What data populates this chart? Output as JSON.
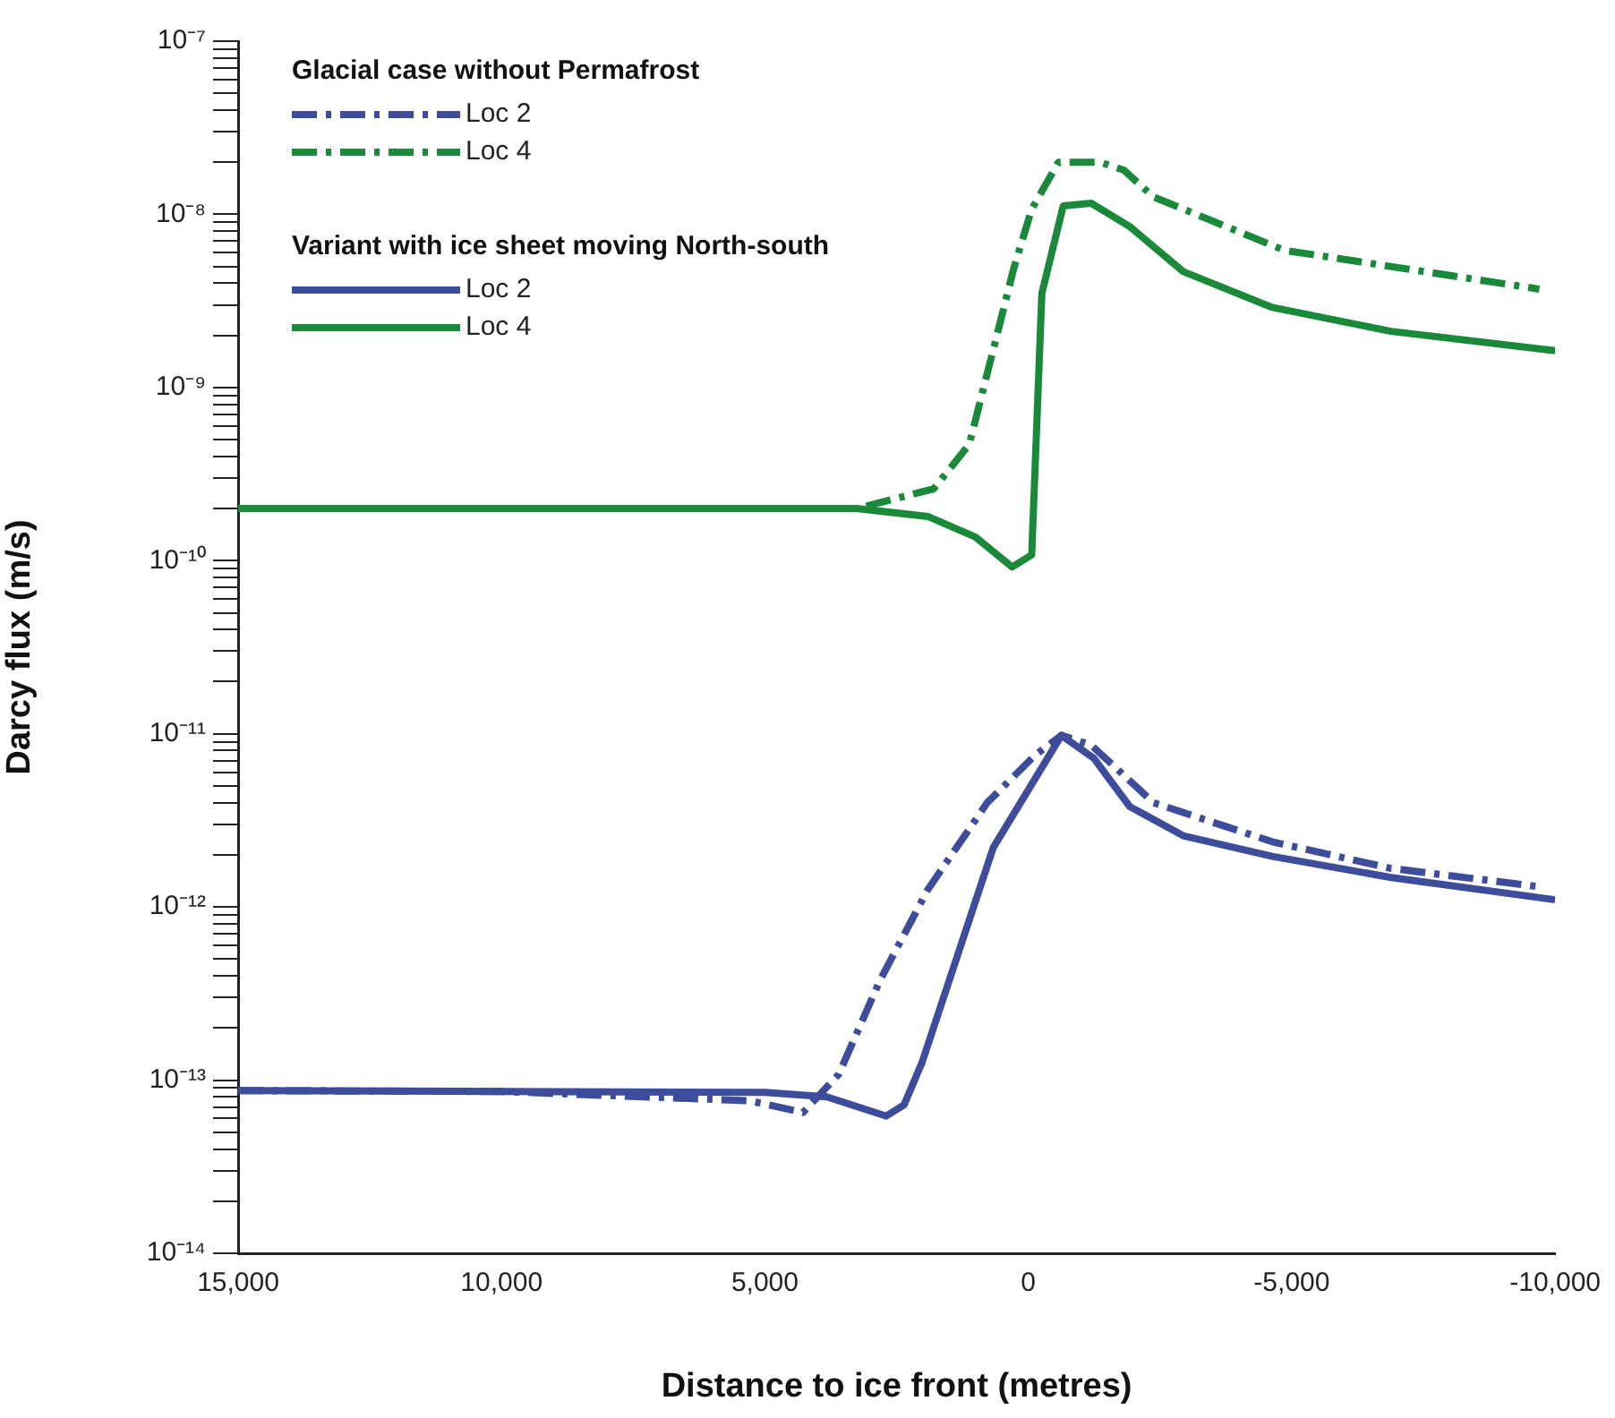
{
  "chart_data": {
    "type": "line",
    "xlabel": "Distance to ice front (metres)",
    "ylabel": "Darcy flux (m/s)",
    "annotations": [
      "Glacial case without Permafrost",
      "Variant with ice sheet moving North-south"
    ],
    "legend": "top left",
    "log": "y",
    "grid": false,
    "marker": "none",
    "xlim": [
      15000,
      -10000
    ],
    "xticks": [
      {
        "value": 15000,
        "label": "15,000"
      },
      {
        "value": 10000,
        "label": "10,000"
      },
      {
        "value": 5000,
        "label": "5,000"
      },
      0,
      {
        "value": -5000,
        "label": "-5,000"
      },
      {
        "value": -10000,
        "label": "-10,000"
      }
    ],
    "ylim": [
      1e-14,
      1e-07
    ],
    "yticks": [
      {
        "value": 1e-14,
        "label": "10⁻¹⁴"
      },
      {
        "value": 2e-14,
        "label": null
      },
      {
        "value": 3e-14,
        "label": null
      },
      {
        "value": 4e-14,
        "label": null
      },
      {
        "value": 5e-14,
        "label": null
      },
      {
        "value": 6e-14,
        "label": null
      },
      {
        "value": 7e-14,
        "label": null
      },
      {
        "value": 8e-14,
        "label": null
      },
      {
        "value": 9e-14,
        "label": null
      },
      {
        "value": 1e-13,
        "label": "10⁻¹³"
      },
      {
        "value": 2e-13,
        "label": null
      },
      {
        "value": 3e-13,
        "label": null
      },
      {
        "value": 4e-13,
        "label": null
      },
      {
        "value": 5e-13,
        "label": null
      },
      {
        "value": 6e-13,
        "label": null
      },
      {
        "value": 7e-13,
        "label": null
      },
      {
        "value": 8e-13,
        "label": null
      },
      {
        "value": 9e-13,
        "label": null
      },
      {
        "value": 1e-12,
        "label": "10⁻¹²"
      },
      {
        "value": 2e-12,
        "label": null
      },
      {
        "value": 3e-12,
        "label": null
      },
      {
        "value": 4e-12,
        "label": null
      },
      {
        "value": 5e-12,
        "label": null
      },
      {
        "value": 6e-12,
        "label": null
      },
      {
        "value": 7e-12,
        "label": null
      },
      {
        "value": 8e-12,
        "label": null
      },
      {
        "value": 9e-12,
        "label": null
      },
      {
        "value": 1e-11,
        "label": "10⁻¹¹"
      },
      {
        "value": 2e-11,
        "label": null
      },
      {
        "value": 3e-11,
        "label": null
      },
      {
        "value": 4e-11,
        "label": null
      },
      {
        "value": 5e-11,
        "label": null
      },
      {
        "value": 6e-11,
        "label": null
      },
      {
        "value": 7e-11,
        "label": null
      },
      {
        "value": 8e-11,
        "label": null
      },
      {
        "value": 9e-11,
        "label": null
      },
      {
        "value": 1e-10,
        "label": "10⁻¹⁰"
      },
      {
        "value": 2e-10,
        "label": null
      },
      {
        "value": 3e-10,
        "label": null
      },
      {
        "value": 4e-10,
        "label": null
      },
      {
        "value": 5e-10,
        "label": null
      },
      {
        "value": 6e-10,
        "label": null
      },
      {
        "value": 7e-10,
        "label": null
      },
      {
        "value": 8e-10,
        "label": null
      },
      {
        "value": 9e-10,
        "label": null
      },
      {
        "value": 1e-09,
        "label": "10⁻⁹"
      },
      {
        "value": 2e-09,
        "label": null
      },
      {
        "value": 3e-09,
        "label": null
      },
      {
        "value": 4e-09,
        "label": null
      },
      {
        "value": 5e-09,
        "label": null
      },
      {
        "value": 6e-09,
        "label": null
      },
      {
        "value": 7e-09,
        "label": null
      },
      {
        "value": 8e-09,
        "label": null
      },
      {
        "value": 9e-09,
        "label": null
      },
      {
        "value": 1e-08,
        "label": "10⁻⁸"
      },
      {
        "value": 2e-08,
        "label": null
      },
      {
        "value": 3e-08,
        "label": null
      },
      {
        "value": 4e-08,
        "label": null
      },
      {
        "value": 5e-08,
        "label": null
      },
      {
        "value": 6e-08,
        "label": null
      },
      {
        "value": 7e-08,
        "label": null
      },
      {
        "value": 8e-08,
        "label": null
      },
      {
        "value": 9e-08,
        "label": null
      },
      {
        "value": 1e-07,
        "label": "10⁻⁷"
      }
    ],
    "series": [
      {
        "name": "Loc 2",
        "color": "#3d4d9c",
        "line_style": "dashed",
        "x": [
          15000,
          10000,
          5291,
          4276,
          3599,
          2811,
          1908,
          781,
          -122,
          -629,
          -1194,
          -2378,
          -4631,
          -6888,
          -9700
        ],
        "values": [
          8.7e-14,
          8.6e-14,
          7.6e-14,
          6.5e-14,
          1.08e-13,
          3.8e-13,
          1.26e-12,
          4e-12,
          7.5e-12,
          9.8e-12,
          8.6e-12,
          4e-12,
          2.38e-12,
          1.67e-12,
          1.31e-12
        ]
      },
      {
        "name": "Loc 4",
        "color": "#1a8a3a",
        "line_style": "dashed",
        "x": [
          15000,
          10000,
          3261,
          1796,
          1120,
          274,
          -64,
          -572,
          -1363,
          -1813,
          -2378,
          -4858,
          -9700
        ],
        "values": [
          2e-10,
          2e-10,
          2e-10,
          2.6e-10,
          4.7e-10,
          4.9e-09,
          1.07e-08,
          2e-08,
          2e-08,
          1.8e-08,
          1.26e-08,
          6.2e-09,
          3.7e-09
        ]
      },
      {
        "name": "Loc 2",
        "color": "#3d4d9c",
        "line_style": "solid",
        "x": [
          15000,
          10000,
          5000,
          3826,
          2696,
          2358,
          2020,
          666,
          -629,
          -1248,
          -1925,
          -2940,
          -4631,
          -6888,
          -10000
        ],
        "values": [
          8.7e-14,
          8.6e-14,
          8.5e-14,
          8e-14,
          6.2e-14,
          7.2e-14,
          1.26e-13,
          2.2e-12,
          9.8e-12,
          7.2e-12,
          3.8e-12,
          2.58e-12,
          1.96e-12,
          1.48e-12,
          1.1e-12
        ]
      },
      {
        "name": "Loc 4",
        "color": "#1a8a3a",
        "line_style": "solid",
        "x": [
          15000,
          10000,
          3261,
          1908,
          1005,
          308,
          -64,
          -257,
          -663,
          -1194,
          -1925,
          -2940,
          -4631,
          -6887,
          -10000
        ],
        "values": [
          2e-10,
          2e-10,
          2e-10,
          1.8e-10,
          1.37e-10,
          9.2e-11,
          1.08e-10,
          3.5e-09,
          1.12e-08,
          1.16e-08,
          8.5e-09,
          4.67e-09,
          2.9e-09,
          2.11e-09,
          1.63e-09
        ]
      }
    ]
  }
}
